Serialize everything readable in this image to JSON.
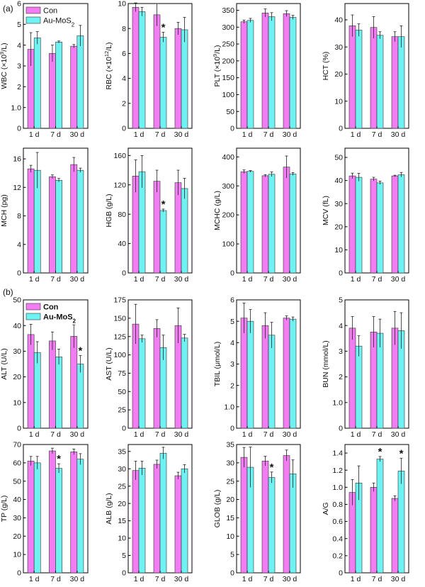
{
  "panel_labels": [
    "(a)",
    "(b)"
  ],
  "colors": {
    "con": "#f27cf2",
    "au": "#6ff2f2",
    "axis": "#000000"
  },
  "legends": [
    {
      "panel": 0,
      "bold": false,
      "entries": [
        {
          "series": "con",
          "parts": [
            {
              "t": "Con"
            }
          ]
        },
        {
          "series": "au",
          "parts": [
            {
              "t": "Au-MoS"
            },
            {
              "t": "2",
              "sub": true
            }
          ]
        }
      ]
    },
    {
      "panel": 8,
      "bold": true,
      "entries": [
        {
          "series": "con",
          "parts": [
            {
              "t": "Con"
            }
          ]
        },
        {
          "series": "au",
          "parts": [
            {
              "t": "Au-MoS"
            },
            {
              "t": "2",
              "sub": true
            }
          ]
        }
      ]
    }
  ],
  "chart_data": [
    {
      "type": "bar",
      "categories": [
        "1 d",
        "7 d",
        "30 d"
      ],
      "ylabel": [
        {
          "t": "WBC (×10"
        },
        {
          "t": "9",
          "sup": true
        },
        {
          "t": "/L)"
        }
      ],
      "ylim": [
        0,
        6
      ],
      "yticks": [
        0,
        1,
        2,
        3,
        4,
        5,
        6
      ],
      "series": [
        {
          "name": "Con",
          "values": [
            3.8,
            3.6,
            3.95
          ],
          "errors": [
            0.8,
            0.4,
            0.08
          ]
        },
        {
          "name": "Au-MoS2",
          "values": [
            4.35,
            4.15,
            4.45
          ],
          "errors": [
            0.3,
            0.05,
            0.5
          ]
        }
      ],
      "annotations": []
    },
    {
      "type": "bar",
      "categories": [
        "1 d",
        "7 d",
        "30 d"
      ],
      "ylabel": [
        {
          "t": "RBC (×10"
        },
        {
          "t": "12",
          "sup": true
        },
        {
          "t": "/L)"
        }
      ],
      "ylim": [
        0,
        10
      ],
      "yticks": [
        0,
        2,
        4,
        6,
        8,
        10
      ],
      "series": [
        {
          "name": "Con",
          "values": [
            9.7,
            9.1,
            8.0
          ],
          "errors": [
            0.35,
            0.9,
            0.5
          ]
        },
        {
          "name": "Au-MoS2",
          "values": [
            9.35,
            7.3,
            7.9
          ],
          "errors": [
            0.35,
            0.4,
            1.0
          ]
        }
      ],
      "annotations": [
        {
          "label": "*",
          "index": 1,
          "series": 1
        }
      ]
    },
    {
      "type": "bar",
      "categories": [
        "1 d",
        "7 d",
        "30 d"
      ],
      "ylabel": [
        {
          "t": "PLT (×10"
        },
        {
          "t": "9",
          "sup": true
        },
        {
          "t": "/L)"
        }
      ],
      "ylim": [
        0,
        370
      ],
      "yticks": [
        0,
        50,
        100,
        150,
        200,
        250,
        300,
        350
      ],
      "series": [
        {
          "name": "Con",
          "values": [
            316,
            342,
            340
          ],
          "errors": [
            5,
            12,
            9
          ]
        },
        {
          "name": "Au-MoS2",
          "values": [
            320,
            331,
            329
          ],
          "errors": [
            6,
            12,
            6
          ]
        }
      ],
      "annotations": []
    },
    {
      "type": "bar",
      "categories": [
        "1 d",
        "7 d",
        "30 d"
      ],
      "ylabel": [
        {
          "t": "HCT (%)"
        }
      ],
      "ylim": [
        0,
        46
      ],
      "yticks": [
        0,
        10,
        20,
        30,
        40
      ],
      "series": [
        {
          "name": "Con",
          "values": [
            37.8,
            37.2,
            33.8
          ],
          "errors": [
            4.0,
            4.0,
            1.8
          ]
        },
        {
          "name": "Au-MoS2",
          "values": [
            36.2,
            34.3,
            33.8
          ],
          "errors": [
            2.3,
            1.3,
            4.0
          ]
        }
      ],
      "annotations": []
    },
    {
      "type": "bar",
      "categories": [
        "1 d",
        "7 d",
        "30 d"
      ],
      "ylabel": [
        {
          "t": "MCH (pg)"
        }
      ],
      "ylim": [
        0,
        17.5
      ],
      "yticks": [
        0,
        4,
        8,
        12,
        16
      ],
      "series": [
        {
          "name": "Con",
          "values": [
            14.6,
            13.5,
            15.2
          ],
          "errors": [
            0.5,
            0.25,
            1.0
          ]
        },
        {
          "name": "Au-MoS2",
          "values": [
            14.4,
            13.0,
            14.4
          ],
          "errors": [
            2.5,
            0.25,
            0.3
          ]
        }
      ],
      "annotations": []
    },
    {
      "type": "bar",
      "categories": [
        "1 d",
        "7 d",
        "30 d"
      ],
      "ylabel": [
        {
          "t": "HGB (g/L)"
        }
      ],
      "ylim": [
        0,
        170
      ],
      "yticks": [
        0,
        40,
        80,
        120,
        160
      ],
      "series": [
        {
          "name": "Con",
          "values": [
            132,
            125,
            123
          ],
          "errors": [
            22,
            15,
            17
          ]
        },
        {
          "name": "Au-MoS2",
          "values": [
            138,
            85,
            115
          ],
          "errors": [
            22,
            2,
            14
          ]
        }
      ],
      "annotations": [
        {
          "label": "*",
          "index": 1,
          "series": 1
        }
      ]
    },
    {
      "type": "bar",
      "categories": [
        "1 d",
        "7 d",
        "30 d"
      ],
      "ylabel": [
        {
          "t": "MCHC (g/L)"
        }
      ],
      "ylim": [
        0,
        430
      ],
      "yticks": [
        0,
        100,
        200,
        300,
        400
      ],
      "series": [
        {
          "name": "Con",
          "values": [
            349,
            335,
            365
          ],
          "errors": [
            6,
            4,
            38
          ]
        },
        {
          "name": "Au-MoS2",
          "values": [
            350,
            340,
            341
          ],
          "errors": [
            3,
            8,
            5
          ]
        }
      ],
      "annotations": []
    },
    {
      "type": "bar",
      "categories": [
        "1 d",
        "7 d",
        "30 d"
      ],
      "ylabel": [
        {
          "t": "MCV (fL)"
        }
      ],
      "ylim": [
        0,
        54
      ],
      "yticks": [
        0,
        10,
        20,
        30,
        40,
        50
      ],
      "series": [
        {
          "name": "Con",
          "values": [
            42.0,
            40.6,
            42.0
          ],
          "errors": [
            1.2,
            0.8,
            0.3
          ]
        },
        {
          "name": "Au-MoS2",
          "values": [
            41.4,
            39.0,
            42.5
          ],
          "errors": [
            1.7,
            0.7,
            1.0
          ]
        }
      ],
      "annotations": []
    },
    {
      "type": "bar",
      "categories": [
        "1 d",
        "7 d",
        "30 d"
      ],
      "ylabel": [
        {
          "t": "ALT (U/L)"
        }
      ],
      "ylim": [
        0,
        50
      ],
      "yticks": [
        0,
        10,
        20,
        30,
        40,
        50
      ],
      "series": [
        {
          "name": "Con",
          "values": [
            36.5,
            34.0,
            35.8
          ],
          "errors": [
            4.0,
            3.5,
            4.5
          ]
        },
        {
          "name": "Au-MoS2",
          "values": [
            29.5,
            27.8,
            25.0
          ],
          "errors": [
            4.2,
            3.0,
            3.3
          ]
        }
      ],
      "annotations": [
        {
          "label": "*",
          "index": 2,
          "series": 1
        }
      ]
    },
    {
      "type": "bar",
      "categories": [
        "1 d",
        "7 d",
        "30 d"
      ],
      "ylabel": [
        {
          "t": "AST (U/L)"
        }
      ],
      "ylim": [
        0,
        175
      ],
      "yticks": [
        0,
        25,
        50,
        75,
        100,
        125,
        150,
        175
      ],
      "series": [
        {
          "name": "Con",
          "values": [
            142,
            136,
            140
          ],
          "errors": [
            27,
            12,
            24
          ]
        },
        {
          "name": "Au-MoS2",
          "values": [
            122,
            110,
            123
          ],
          "errors": [
            5,
            17,
            5
          ]
        }
      ],
      "annotations": []
    },
    {
      "type": "bar",
      "categories": [
        "1 d",
        "7 d",
        "30 d"
      ],
      "ylabel": [
        {
          "t": "TBIL (μmol/L)"
        }
      ],
      "ylim": [
        0,
        6
      ],
      "yticks": [
        0,
        1,
        2,
        3,
        4,
        5,
        6
      ],
      "series": [
        {
          "name": "Con",
          "values": [
            5.15,
            4.8,
            5.15
          ],
          "errors": [
            0.7,
            0.6,
            0.1
          ]
        },
        {
          "name": "Au-MoS2",
          "values": [
            5.0,
            4.35,
            5.1
          ],
          "errors": [
            0.55,
            0.6,
            0.1
          ]
        }
      ],
      "annotations": []
    },
    {
      "type": "bar",
      "categories": [
        "1 d",
        "7 d",
        "30 d"
      ],
      "ylabel": [
        {
          "t": "BUN (mmol/L)"
        }
      ],
      "ylim": [
        0,
        5
      ],
      "yticks": [
        0,
        1,
        2,
        3,
        4,
        5
      ],
      "series": [
        {
          "name": "Con",
          "values": [
            3.9,
            3.75,
            3.9
          ],
          "errors": [
            0.45,
            0.6,
            0.65
          ]
        },
        {
          "name": "Au-MoS2",
          "values": [
            3.2,
            3.7,
            3.8
          ],
          "errors": [
            0.4,
            0.55,
            0.7
          ]
        }
      ],
      "annotations": []
    },
    {
      "type": "bar",
      "categories": [
        "1 d",
        "7 d",
        "30 d"
      ],
      "ylabel": [
        {
          "t": "TP (g/L)"
        }
      ],
      "ylim": [
        0,
        70
      ],
      "yticks": [
        0,
        10,
        20,
        30,
        40,
        50,
        60,
        70
      ],
      "series": [
        {
          "name": "Con",
          "values": [
            61,
            66.5,
            66
          ],
          "errors": [
            2.5,
            1.5,
            1.5
          ]
        },
        {
          "name": "Au-MoS2",
          "values": [
            60,
            57,
            62
          ],
          "errors": [
            3.5,
            2.5,
            3.0
          ]
        }
      ],
      "annotations": [
        {
          "label": "*",
          "index": 1,
          "series": 1
        }
      ]
    },
    {
      "type": "bar",
      "categories": [
        "1 d",
        "7 d",
        "30 d"
      ],
      "ylabel": [
        {
          "t": "ALB (g/L)"
        }
      ],
      "ylim": [
        0,
        37
      ],
      "yticks": [
        0,
        5,
        10,
        15,
        20,
        25,
        30,
        35
      ],
      "series": [
        {
          "name": "Con",
          "values": [
            29.5,
            31.3,
            28.0
          ],
          "errors": [
            2.7,
            1.2,
            1.0
          ]
        },
        {
          "name": "Au-MoS2",
          "values": [
            30.2,
            34.5,
            30.0
          ],
          "errors": [
            2.0,
            1.7,
            1.2
          ]
        }
      ],
      "annotations": []
    },
    {
      "type": "bar",
      "categories": [
        "1 d",
        "7 d",
        "30 d"
      ],
      "ylabel": [
        {
          "t": "GLOB (g/L)"
        }
      ],
      "ylim": [
        0,
        35
      ],
      "yticks": [
        0,
        5,
        10,
        15,
        20,
        25,
        30,
        35
      ],
      "series": [
        {
          "name": "Con",
          "values": [
            31.5,
            30.5,
            32.0
          ],
          "errors": [
            2.7,
            1.3,
            1.5
          ]
        },
        {
          "name": "Au-MoS2",
          "values": [
            28.8,
            26.0,
            27.0
          ],
          "errors": [
            5.5,
            1.5,
            3.8
          ]
        }
      ],
      "annotations": [
        {
          "label": "*",
          "index": 1,
          "series": 1
        }
      ]
    },
    {
      "type": "bar",
      "categories": [
        "1 d",
        "7 d",
        "30 d"
      ],
      "ylabel": [
        {
          "t": "A/G"
        }
      ],
      "ylim": [
        0,
        1.5
      ],
      "yticks": [
        0,
        0.2,
        0.4,
        0.6,
        0.8,
        1.0,
        1.2,
        1.4
      ],
      "series": [
        {
          "name": "Con",
          "values": [
            0.94,
            1.0,
            0.87
          ],
          "errors": [
            0.15,
            0.05,
            0.03
          ]
        },
        {
          "name": "Au-MoS2",
          "values": [
            1.05,
            1.33,
            1.19
          ],
          "errors": [
            0.2,
            0.03,
            0.15
          ]
        }
      ],
      "annotations": [
        {
          "label": "*",
          "index": 1,
          "series": 1
        },
        {
          "label": "*",
          "index": 2,
          "series": 1
        }
      ]
    }
  ]
}
